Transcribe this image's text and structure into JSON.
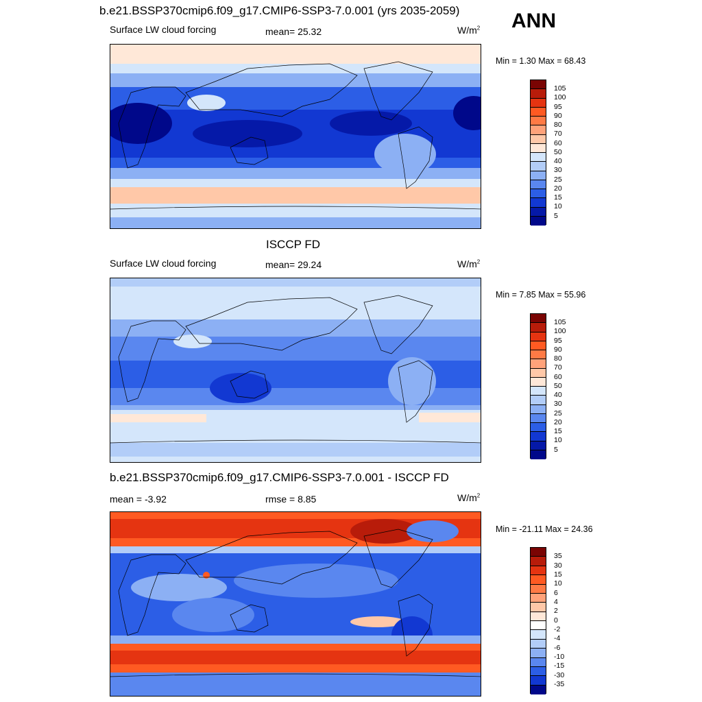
{
  "header": {
    "title": "b.e21.BSSP370cmip6.f09_g17.CMIP6-SSP3-7.0.001 (yrs 2035-2059)",
    "season": "ANN"
  },
  "panel1": {
    "var_label": "Surface LW cloud forcing",
    "mean_label": "mean=  25.32",
    "units_base": "W/m",
    "units_exp": "2",
    "minmax": "Min =   1.30 Max =  68.43",
    "colorbar_labels": [
      "105",
      "100",
      "95",
      "90",
      "80",
      "70",
      "60",
      "50",
      "40",
      "30",
      "25",
      "20",
      "15",
      "10",
      "5"
    ]
  },
  "panel2": {
    "title": "ISCCP FD",
    "var_label": "Surface LW cloud forcing",
    "mean_label": "mean=  29.24",
    "units_base": "W/m",
    "units_exp": "2",
    "minmax": "Min =   7.85 Max =  55.96",
    "colorbar_labels": [
      "105",
      "100",
      "95",
      "90",
      "80",
      "70",
      "60",
      "50",
      "40",
      "30",
      "25",
      "20",
      "15",
      "10",
      "5"
    ]
  },
  "panel3": {
    "title": "b.e21.BSSP370cmip6.f09_g17.CMIP6-SSP3-7.0.001 - ISCCP FD",
    "mean_label": "mean =  -3.92",
    "rmse_label": "rmse =   8.85",
    "units_base": "W/m",
    "units_exp": "2",
    "minmax": "Min = -21.11 Max =  24.36",
    "colorbar_labels": [
      "35",
      "30",
      "15",
      "10",
      "6",
      "4",
      "2",
      "0",
      "-2",
      "-4",
      "-6",
      "-10",
      "-15",
      "-30",
      "-35"
    ]
  },
  "colors": {
    "abs_scale": [
      "#7a0403",
      "#b81c0a",
      "#e53411",
      "#ff5a22",
      "#ff7a45",
      "#ffa27a",
      "#ffc8a8",
      "#ffe8d8",
      "#d4e6fb",
      "#b2cdf8",
      "#8cb0f4",
      "#5a87ef",
      "#2c5ee6",
      "#1238d2",
      "#0519a8",
      "#00088a"
    ],
    "diff_scale": [
      "#7a0403",
      "#b81c0a",
      "#e53411",
      "#ff5a22",
      "#ff7a45",
      "#ffa27a",
      "#ffc8a8",
      "#ffe8d8",
      "#ffffff",
      "#d4e6fb",
      "#b2cdf8",
      "#8cb0f4",
      "#5a87ef",
      "#2c5ee6",
      "#1238d2",
      "#00088a"
    ]
  }
}
